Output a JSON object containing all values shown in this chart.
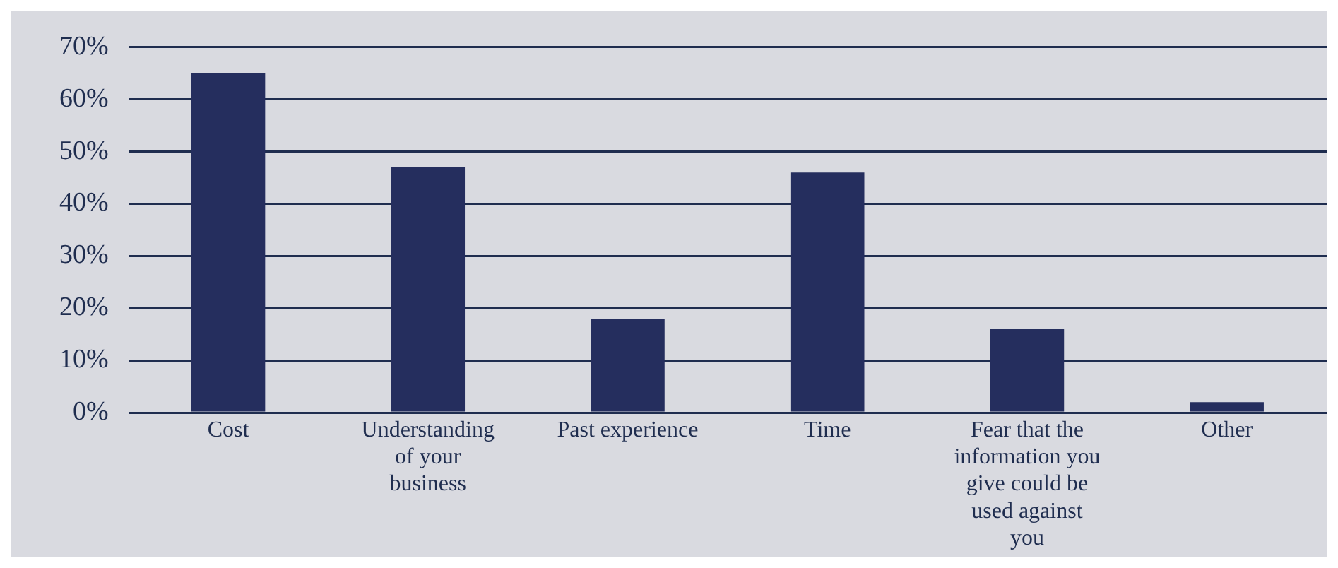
{
  "chart_data": {
    "type": "bar",
    "categories": [
      "Cost",
      "Understanding of your business",
      "Past experience",
      "Time",
      "Fear that the information you give could be used against you",
      "Other"
    ],
    "values": [
      65,
      47,
      18,
      46,
      16,
      2
    ],
    "color": "#252e5e",
    "ylim": [
      0,
      70
    ],
    "yticks": [
      {
        "value": 0,
        "label": "0%"
      },
      {
        "value": 10,
        "label": "10%"
      },
      {
        "value": 20,
        "label": "20%"
      },
      {
        "value": 30,
        "label": "30%"
      },
      {
        "value": 40,
        "label": "40%"
      },
      {
        "value": 50,
        "label": "50%"
      },
      {
        "value": 60,
        "label": "60%"
      },
      {
        "value": 70,
        "label": "70%"
      }
    ],
    "grid": "y",
    "legend": false
  }
}
